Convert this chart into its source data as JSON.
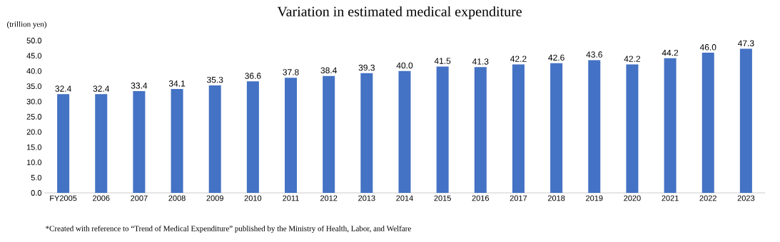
{
  "chart_data": {
    "type": "bar",
    "title": "Variation in estimated medical expenditure",
    "ylabel": "(trillion yen)",
    "categories": [
      "FY2005",
      "2006",
      "2007",
      "2008",
      "2009",
      "2010",
      "2011",
      "2012",
      "2013",
      "2014",
      "2015",
      "2016",
      "2017",
      "2018",
      "2019",
      "2020",
      "2021",
      "2022",
      "2023"
    ],
    "values": [
      32.4,
      32.4,
      33.4,
      34.1,
      35.3,
      36.6,
      37.8,
      38.4,
      39.3,
      40.0,
      41.5,
      41.3,
      42.2,
      42.6,
      43.6,
      42.2,
      44.2,
      46.0,
      47.3
    ],
    "value_labels": [
      "32.4",
      "32.4",
      "33.4",
      "34.1",
      "35.3",
      "36.6",
      "37.8",
      "38.4",
      "39.3",
      "40.0",
      "41.5",
      "41.3",
      "42.2",
      "42.6",
      "43.6",
      "42.2",
      "44.2",
      "46.0",
      "47.3"
    ],
    "color": "#4472c4",
    "ylim": [
      0,
      50
    ],
    "yticks": [
      {
        "value": 0,
        "label": "0.0"
      },
      {
        "value": 5,
        "label": "5.0"
      },
      {
        "value": 10,
        "label": "10.0"
      },
      {
        "value": 15,
        "label": "15.0"
      },
      {
        "value": 20,
        "label": "20.0"
      },
      {
        "value": 25,
        "label": "25.0"
      },
      {
        "value": 30,
        "label": "30.0"
      },
      {
        "value": 35,
        "label": "35.0"
      },
      {
        "value": 40,
        "label": "40.0"
      },
      {
        "value": 45,
        "label": "45.0"
      },
      {
        "value": 50,
        "label": "50.0"
      }
    ],
    "annotations": [
      "*Created with reference to “Trend of Medical Expenditure” published by the Ministry of Health, Labor, and Welfare"
    ]
  }
}
